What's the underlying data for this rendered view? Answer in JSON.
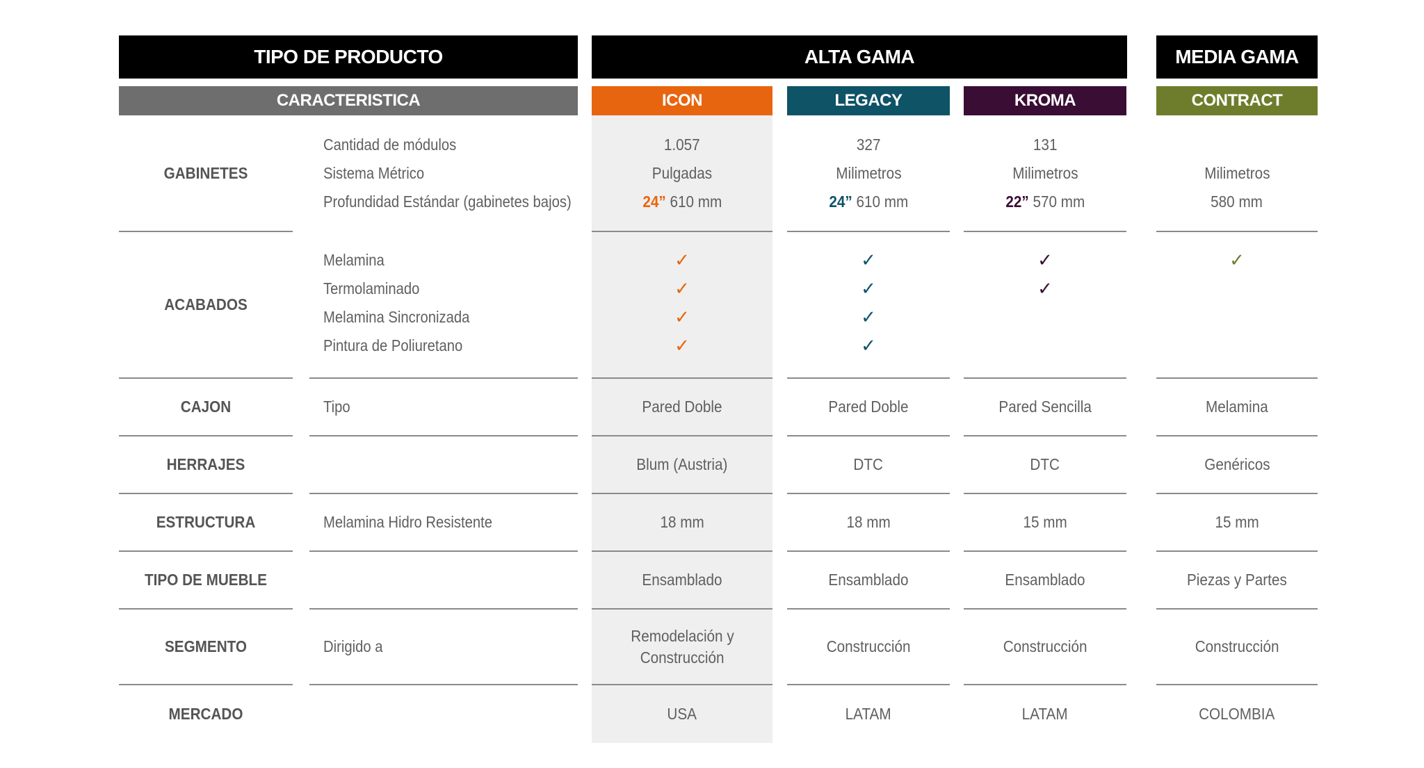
{
  "headers": {
    "product_type": "TIPO DE PRODUCTO",
    "alta_gama": "ALTA GAMA",
    "media_gama": "MEDIA GAMA",
    "characteristic": "CARACTERISTICA",
    "icon": "ICON",
    "legacy": "LEGACY",
    "kroma": "KROMA",
    "contract": "CONTRACT"
  },
  "colors": {
    "icon": "#e8650f",
    "legacy": "#0f5367",
    "kroma": "#3a0d35",
    "contract": "#6d7d2c",
    "characteristic": "#6e6e6e",
    "black_header": "#000000"
  },
  "gabinetes": {
    "label": "GABINETES",
    "features": [
      "Cantidad de módulos",
      "Sistema Métrico",
      "Profundidad Estándar (gabinetes bajos)"
    ],
    "icon": {
      "modules": "1.057",
      "system": "Pulgadas",
      "depth_in": "24”",
      "depth_mm": "610 mm"
    },
    "legacy": {
      "modules": "327",
      "system": "Milimetros",
      "depth_in": "24”",
      "depth_mm": "610 mm"
    },
    "kroma": {
      "modules": "131",
      "system": "Milimetros",
      "depth_in": "22”",
      "depth_mm": "570 mm"
    },
    "contract": {
      "system": "Milimetros",
      "depth_mm": "580 mm"
    }
  },
  "acabados": {
    "label": "ACABADOS",
    "features": [
      "Melamina",
      "Termolaminado",
      "Melamina Sincronizada",
      "Pintura de Poliuretano"
    ],
    "check_icon": "check-mark",
    "check_glyph": "✓",
    "icon": [
      true,
      true,
      true,
      true
    ],
    "legacy": [
      true,
      true,
      true,
      true
    ],
    "kroma": [
      true,
      true,
      false,
      false
    ],
    "contract": [
      true,
      false,
      false,
      false
    ]
  },
  "cajon": {
    "label": "CAJON",
    "feature": "Tipo",
    "icon": "Pared Doble",
    "legacy": "Pared Doble",
    "kroma": "Pared Sencilla",
    "contract": "Melamina"
  },
  "herrajes": {
    "label": "HERRAJES",
    "icon": "Blum (Austria)",
    "legacy": "DTC",
    "kroma": "DTC",
    "contract": "Genéricos"
  },
  "estructura": {
    "label": "ESTRUCTURA",
    "feature": "Melamina Hidro Resistente",
    "icon": "18 mm",
    "legacy": "18 mm",
    "kroma": "15 mm",
    "contract": "15 mm"
  },
  "tipo_mueble": {
    "label": "TIPO DE MUEBLE",
    "icon": "Ensamblado",
    "legacy": "Ensamblado",
    "kroma": "Ensamblado",
    "contract": "Piezas y Partes"
  },
  "segmento": {
    "label": "SEGMENTO",
    "feature": "Dirigido a",
    "icon_line1": "Remodelación y",
    "icon_line2": "Construcción",
    "legacy": "Construcción",
    "kroma": "Construcción",
    "contract": "Construcción"
  },
  "mercado": {
    "label": "MERCADO",
    "icon": "USA",
    "legacy": "LATAM",
    "kroma": "LATAM",
    "contract": "COLOMBIA"
  }
}
